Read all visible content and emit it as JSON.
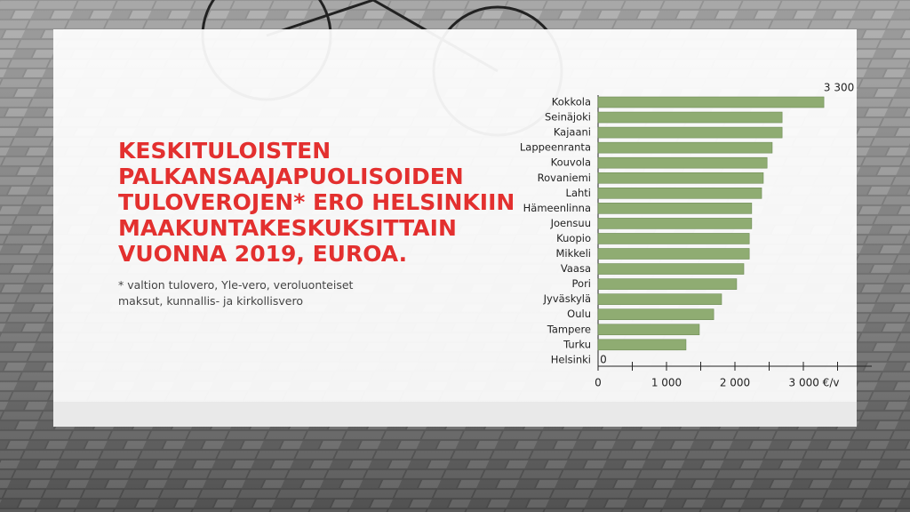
{
  "chart_data": {
    "type": "hbar",
    "title": [
      "KESKITULOISTEN",
      "PALKANSAAJAPUOLISOIDEN",
      "TULOVEROJEN* ERO HELSINKIIN",
      "MAAKUNTAKESKUKSITTAIN",
      "VUONNA 2019, EUROA."
    ],
    "note": [
      "* valtion tulovero, Yle-vero, veroluonteiset",
      "maksut, kunnallis- ja kirkollisvero"
    ],
    "categories": [
      "Kokkola",
      "Seinäjoki",
      "Kajaani",
      "Lappeenranta",
      "Kouvola",
      "Rovaniemi",
      "Lahti",
      "Hämeenlinna",
      "Joensuu",
      "Kuopio",
      "Mikkeli",
      "Vaasa",
      "Pori",
      "Jyväskylä",
      "Oulu",
      "Tampere",
      "Turku",
      "Helsinki"
    ],
    "values": [
      3300,
      2690,
      2690,
      2545,
      2470,
      2415,
      2390,
      2245,
      2245,
      2210,
      2210,
      2130,
      2025,
      1805,
      1690,
      1480,
      1285,
      0
    ],
    "value_labels": [
      "3 300",
      null,
      null,
      null,
      null,
      null,
      null,
      null,
      null,
      null,
      null,
      null,
      null,
      null,
      null,
      null,
      null,
      "0"
    ],
    "color": "#8fac72",
    "xlim": [
      0,
      4000
    ],
    "xticks": [
      0,
      {
        "value": 1000,
        "label": "1 000"
      },
      {
        "value": 2000,
        "label": "2 000"
      },
      {
        "value": 3000,
        "label": "3 000 €/v"
      }
    ],
    "minor_xticks": [
      500,
      1500,
      2500,
      3500
    ]
  }
}
